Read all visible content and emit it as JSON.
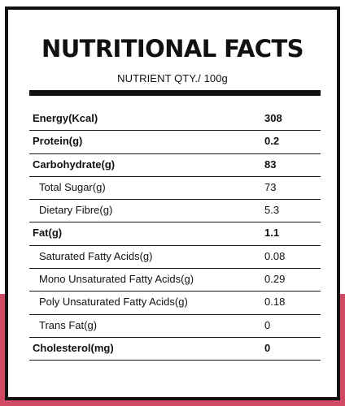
{
  "title": "NUTRITIONAL FACTS",
  "subtitle": "NUTRIENT QTY./ 100g",
  "colors": {
    "accent": "#cf4a62",
    "ink": "#111111",
    "background": "#ffffff"
  },
  "rows": [
    {
      "label": "Energy(Kcal)",
      "value": "308",
      "bold": true
    },
    {
      "label": "Protein(g)",
      "value": "0.2",
      "bold": true
    },
    {
      "label": "Carbohydrate(g)",
      "value": "83",
      "bold": true
    },
    {
      "label": "Total Sugar(g)",
      "value": "73",
      "bold": false
    },
    {
      "label": "Dietary Fibre(g)",
      "value": "5.3",
      "bold": false
    },
    {
      "label": "Fat(g)",
      "value": "1.1",
      "bold": true
    },
    {
      "label": "Saturated Fatty Acids(g)",
      "value": "0.08",
      "bold": false
    },
    {
      "label": "Mono Unsaturated Fatty Acids(g)",
      "value": "0.29",
      "bold": false
    },
    {
      "label": "Poly Unsaturated Fatty Acids(g)",
      "value": "0.18",
      "bold": false
    },
    {
      "label": "Trans Fat(g)",
      "value": "0",
      "bold": false
    },
    {
      "label": "Cholesterol(mg)",
      "value": "0",
      "bold": true
    }
  ]
}
